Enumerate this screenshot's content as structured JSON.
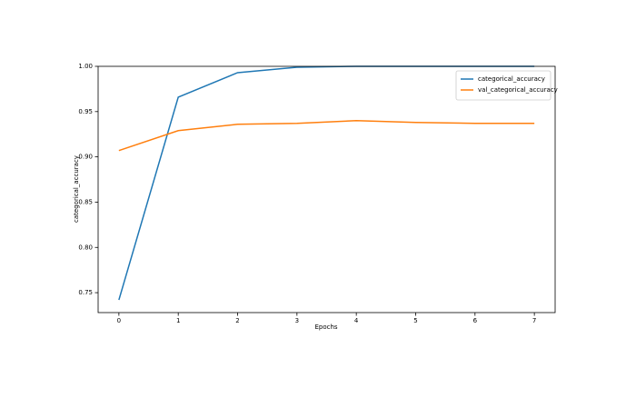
{
  "chart_data": {
    "type": "line",
    "x": [
      0,
      1,
      2,
      3,
      4,
      5,
      6,
      7
    ],
    "series": [
      {
        "name": "categorical_accuracy",
        "color": "#1f77b4",
        "values": [
          0.742,
          0.966,
          0.993,
          0.999,
          1.0,
          1.0,
          1.0,
          1.0
        ]
      },
      {
        "name": "val_categorical_accuracy",
        "color": "#ff7f0e",
        "values": [
          0.907,
          0.929,
          0.936,
          0.937,
          0.94,
          0.938,
          0.937,
          0.937
        ]
      }
    ],
    "xlabel": "Epochs",
    "ylabel": "categorical_accuracy",
    "xlim": [
      -0.35,
      7.35
    ],
    "ylim": [
      0.728,
      1.0
    ],
    "xticks": [
      0,
      1,
      2,
      3,
      4,
      5,
      6,
      7
    ],
    "yticks": [
      {
        "value": 0.75,
        "label": "0.75"
      },
      {
        "value": 0.8,
        "label": "0.80"
      },
      0.85,
      {
        "value": 0.9,
        "label": "0.90"
      },
      0.95,
      {
        "value": 1.0,
        "label": "1.00"
      }
    ],
    "legend": "upper right",
    "grid": false
  }
}
